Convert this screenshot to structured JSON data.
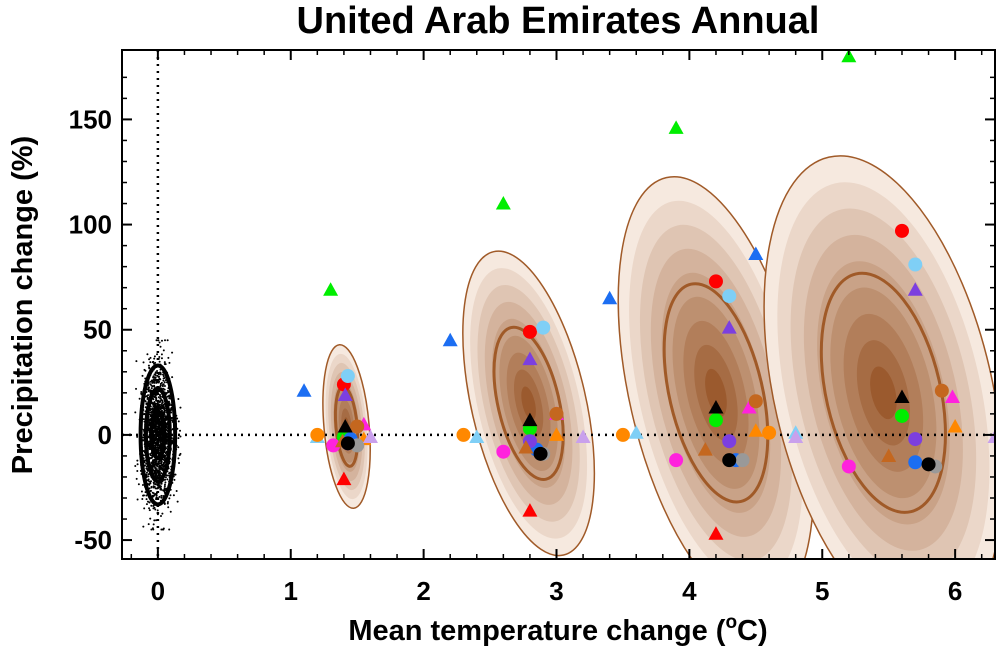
{
  "chart_data": {
    "type": "scatter",
    "title": "United Arab Emirates Annual",
    "xlabel": "Mean temperature change (",
    "xlabel_sup": "o",
    "xlabel_end": "C)",
    "ylabel": "Precipitation change (%)",
    "xlim": [
      -0.27,
      6.3
    ],
    "ylim": [
      -59,
      183
    ],
    "xticks": [
      0,
      1,
      2,
      3,
      4,
      5,
      6
    ],
    "xtick_labels": [
      "0",
      "1",
      "2",
      "3",
      "4",
      "5",
      "6"
    ],
    "yticks": [
      -50,
      0,
      50,
      100,
      150
    ],
    "ytick_labels": [
      "-50",
      "0",
      "50",
      "100",
      "150"
    ],
    "reference_lines": {
      "x": 0,
      "y": 0,
      "style": "dotted"
    },
    "legend": "none",
    "colors": {
      "ellipse_line": "#a05a28",
      "ellipse_fill_outer": "#f6e9df",
      "ellipse_fill_inner": "#9b5a2e",
      "noise_points": "#000000"
    },
    "natural_variability": {
      "center": [
        0,
        0
      ],
      "ellipses": [
        {
          "rx": 0.13,
          "ry": 33
        },
        {
          "rx": 0.09,
          "ry": 22
        },
        {
          "rx": 0.05,
          "ry": 11
        }
      ],
      "scatter_spread": {
        "x": 0.17,
        "y": 45
      }
    },
    "distributions": [
      {
        "center": [
          1.42,
          4
        ],
        "rx_outer": 0.17,
        "ry_outer": 39,
        "rx_line": 0.08,
        "ry_line": 19,
        "angle": -5
      },
      {
        "center": [
          2.79,
          15
        ],
        "rx_outer": 0.43,
        "ry_outer": 74,
        "rx_line": 0.23,
        "ry_line": 37,
        "angle": -13
      },
      {
        "center": [
          4.2,
          20
        ],
        "rx_outer": 0.65,
        "ry_outer": 105,
        "rx_line": 0.35,
        "ry_line": 53,
        "angle": -13
      },
      {
        "center": [
          5.46,
          20
        ],
        "rx_outer": 0.82,
        "ry_outer": 115,
        "rx_line": 0.43,
        "ry_line": 58,
        "angle": -13
      }
    ],
    "series": [
      {
        "name": "",
        "color": "#ff0000",
        "points": [
          {
            "x": 1.4,
            "y": 24,
            "shape": "circle"
          },
          {
            "x": 1.4,
            "y": -21,
            "shape": "triangle"
          },
          {
            "x": 2.8,
            "y": 49,
            "shape": "circle"
          },
          {
            "x": 2.8,
            "y": -36,
            "shape": "triangle"
          },
          {
            "x": 4.2,
            "y": 73,
            "shape": "circle"
          },
          {
            "x": 4.2,
            "y": -47,
            "shape": "triangle"
          },
          {
            "x": 5.6,
            "y": 97,
            "shape": "circle"
          }
        ]
      },
      {
        "name": "",
        "color": "#00ee00",
        "points": [
          {
            "x": 1.3,
            "y": 69,
            "shape": "triangle"
          },
          {
            "x": 2.6,
            "y": 110,
            "shape": "triangle"
          },
          {
            "x": 3.9,
            "y": 146,
            "shape": "triangle"
          },
          {
            "x": 5.2,
            "y": 180,
            "shape": "triangle"
          },
          {
            "x": 1.4,
            "y": -1,
            "shape": "circle"
          },
          {
            "x": 2.8,
            "y": 3,
            "shape": "circle"
          },
          {
            "x": 4.2,
            "y": 7,
            "shape": "circle"
          },
          {
            "x": 5.6,
            "y": 9,
            "shape": "circle"
          }
        ]
      },
      {
        "name": "",
        "color": "#1c6ef2",
        "points": [
          {
            "x": 1.1,
            "y": 21,
            "shape": "triangle"
          },
          {
            "x": 2.2,
            "y": 45,
            "shape": "triangle"
          },
          {
            "x": 3.4,
            "y": 65,
            "shape": "triangle"
          },
          {
            "x": 4.5,
            "y": 86,
            "shape": "triangle"
          },
          {
            "x": 1.45,
            "y": -2,
            "shape": "circle"
          },
          {
            "x": 2.85,
            "y": -7,
            "shape": "circle"
          },
          {
            "x": 4.35,
            "y": -12,
            "shape": "circle"
          },
          {
            "x": 5.7,
            "y": -13,
            "shape": "circle"
          }
        ]
      },
      {
        "name": "",
        "color": "#7fcff6",
        "points": [
          {
            "x": 1.43,
            "y": 28,
            "shape": "circle"
          },
          {
            "x": 2.9,
            "y": 51,
            "shape": "circle"
          },
          {
            "x": 4.3,
            "y": 66,
            "shape": "circle"
          },
          {
            "x": 5.7,
            "y": 81,
            "shape": "circle"
          },
          {
            "x": 1.2,
            "y": -1,
            "shape": "triangle"
          },
          {
            "x": 2.4,
            "y": -1,
            "shape": "triangle"
          },
          {
            "x": 3.6,
            "y": 1,
            "shape": "triangle"
          },
          {
            "x": 4.8,
            "y": 1,
            "shape": "triangle"
          }
        ]
      },
      {
        "name": "",
        "color": "#7c3fe0",
        "points": [
          {
            "x": 1.41,
            "y": 19,
            "shape": "triangle"
          },
          {
            "x": 2.8,
            "y": 36,
            "shape": "triangle"
          },
          {
            "x": 4.3,
            "y": 51,
            "shape": "triangle"
          },
          {
            "x": 5.7,
            "y": 69,
            "shape": "triangle"
          },
          {
            "x": 1.43,
            "y": -4,
            "shape": "circle"
          },
          {
            "x": 2.8,
            "y": -3,
            "shape": "circle"
          },
          {
            "x": 4.3,
            "y": -3,
            "shape": "circle"
          },
          {
            "x": 5.7,
            "y": -2,
            "shape": "circle"
          }
        ]
      },
      {
        "name": "",
        "color": "#ff22dd",
        "points": [
          {
            "x": 1.55,
            "y": 5,
            "shape": "triangle"
          },
          {
            "x": 3.0,
            "y": 10,
            "shape": "triangle"
          },
          {
            "x": 4.45,
            "y": 13,
            "shape": "triangle"
          },
          {
            "x": 5.98,
            "y": 18,
            "shape": "triangle"
          },
          {
            "x": 1.32,
            "y": -5,
            "shape": "circle"
          },
          {
            "x": 2.6,
            "y": -8,
            "shape": "circle"
          },
          {
            "x": 3.9,
            "y": -12,
            "shape": "circle"
          },
          {
            "x": 5.2,
            "y": -15,
            "shape": "circle"
          }
        ]
      },
      {
        "name": "",
        "color": "#ff8800",
        "points": [
          {
            "x": 1.2,
            "y": 0,
            "shape": "circle"
          },
          {
            "x": 2.3,
            "y": 0,
            "shape": "circle"
          },
          {
            "x": 3.5,
            "y": 0,
            "shape": "circle"
          },
          {
            "x": 4.6,
            "y": 1,
            "shape": "circle"
          },
          {
            "x": 1.55,
            "y": -2,
            "shape": "triangle"
          },
          {
            "x": 3.0,
            "y": 0,
            "shape": "triangle"
          },
          {
            "x": 4.5,
            "y": 2,
            "shape": "triangle"
          },
          {
            "x": 6.0,
            "y": 4,
            "shape": "triangle"
          }
        ]
      },
      {
        "name": "",
        "color": "#c4671f",
        "points": [
          {
            "x": 1.5,
            "y": 4,
            "shape": "circle"
          },
          {
            "x": 3.0,
            "y": 10,
            "shape": "circle"
          },
          {
            "x": 4.5,
            "y": 16,
            "shape": "circle"
          },
          {
            "x": 5.9,
            "y": 21,
            "shape": "circle"
          },
          {
            "x": 1.39,
            "y": -3,
            "shape": "triangle"
          },
          {
            "x": 2.77,
            "y": -6,
            "shape": "triangle"
          },
          {
            "x": 4.12,
            "y": -7,
            "shape": "triangle"
          },
          {
            "x": 5.5,
            "y": -10,
            "shape": "triangle"
          }
        ]
      },
      {
        "name": "",
        "color": "#999999",
        "points": [
          {
            "x": 1.5,
            "y": -5,
            "shape": "circle"
          },
          {
            "x": 2.9,
            "y": -9,
            "shape": "circle"
          },
          {
            "x": 4.4,
            "y": -12,
            "shape": "circle"
          },
          {
            "x": 5.85,
            "y": -15,
            "shape": "circle"
          }
        ]
      },
      {
        "name": "",
        "color": "#000000",
        "points": [
          {
            "x": 1.41,
            "y": 4,
            "shape": "triangle"
          },
          {
            "x": 2.8,
            "y": 7,
            "shape": "triangle"
          },
          {
            "x": 4.2,
            "y": 13,
            "shape": "triangle"
          },
          {
            "x": 5.6,
            "y": 18,
            "shape": "triangle"
          },
          {
            "x": 1.43,
            "y": -4,
            "shape": "circle"
          },
          {
            "x": 2.88,
            "y": -9,
            "shape": "circle"
          },
          {
            "x": 4.3,
            "y": -12,
            "shape": "circle"
          },
          {
            "x": 5.8,
            "y": -14,
            "shape": "circle"
          }
        ]
      },
      {
        "name": "",
        "color": "#c9a0ec",
        "points": [
          {
            "x": 1.6,
            "y": -1,
            "shape": "triangle"
          },
          {
            "x": 3.2,
            "y": -1,
            "shape": "triangle"
          },
          {
            "x": 4.8,
            "y": -1,
            "shape": "triangle"
          },
          {
            "x": 6.3,
            "y": -1,
            "shape": "triangle"
          }
        ]
      }
    ]
  }
}
